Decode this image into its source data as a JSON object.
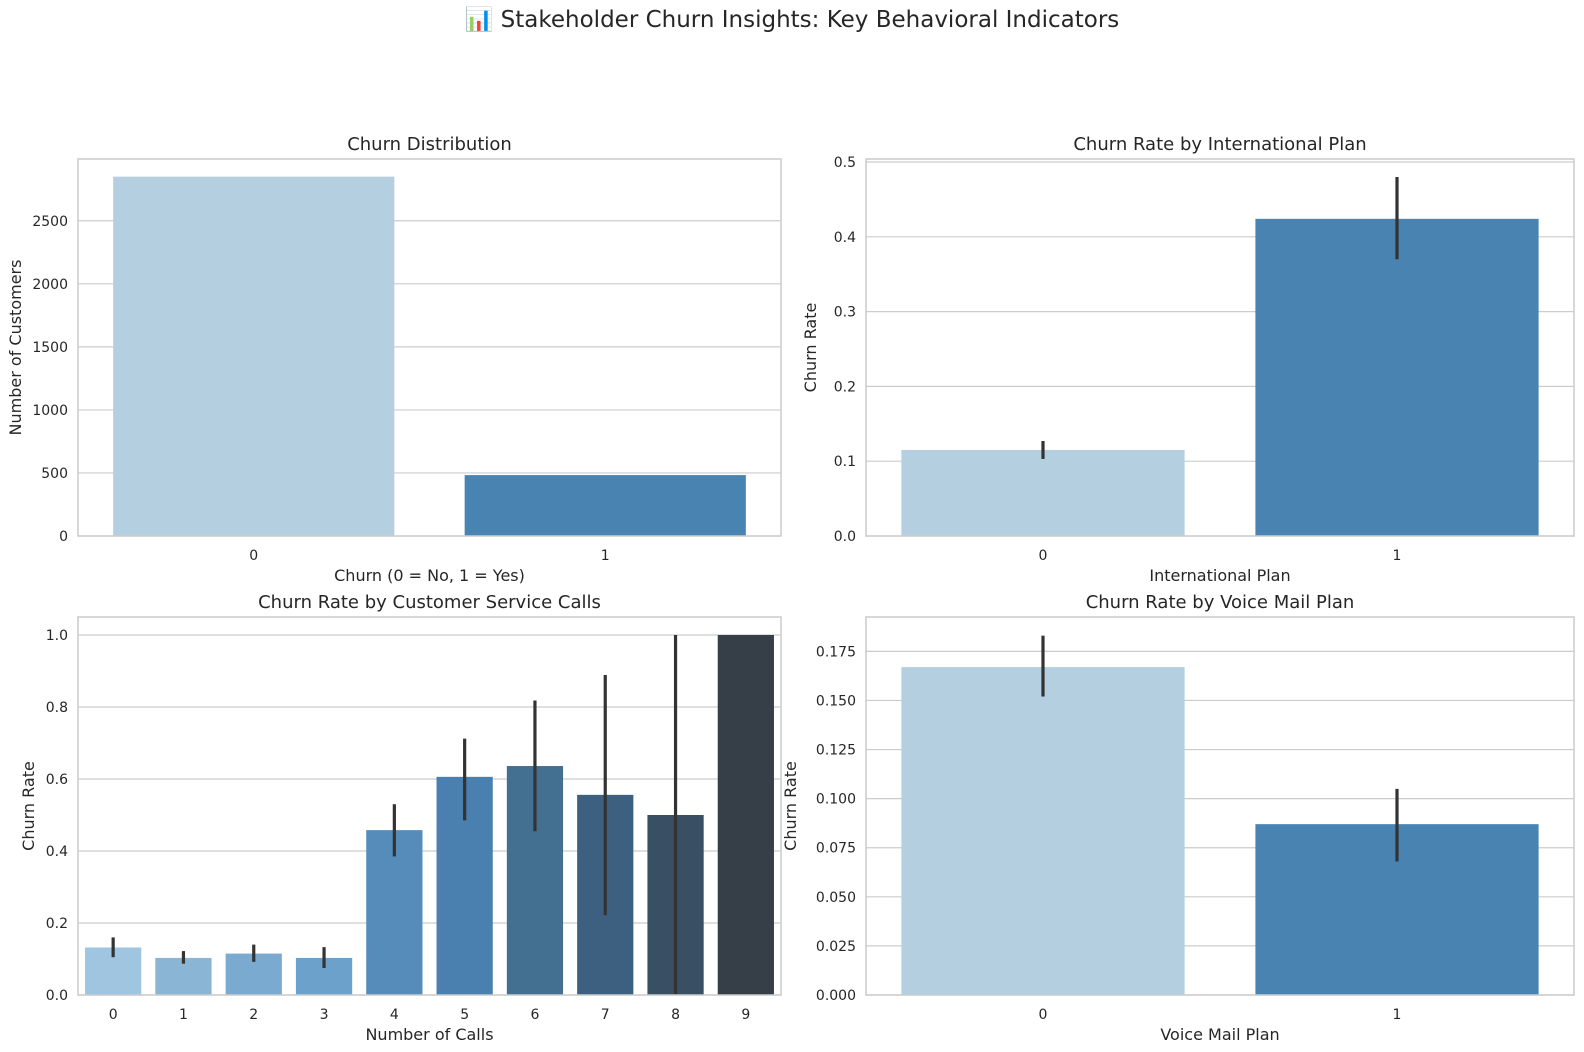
{
  "suptitle": "📊 Stakeholder Churn Insights: Key Behavioral Indicators",
  "colors": {
    "grid": "#cccccc",
    "spine": "#cccccc",
    "errorbar": "#333333",
    "text": "#262626"
  },
  "chart_data": [
    {
      "type": "bar",
      "title": "Churn Distribution",
      "xlabel": "Churn (0 = No, 1 = Yes)",
      "ylabel": "Number of Customers",
      "categories": [
        "0",
        "1"
      ],
      "values": [
        2850,
        483
      ],
      "colors": [
        "#b3cfe0",
        "#4883b1"
      ],
      "ylim": [
        0,
        2990
      ],
      "yticks": [
        0,
        500,
        1000,
        1500,
        2000,
        2500
      ],
      "ytick_labels": [
        "0",
        "500",
        "1000",
        "1500",
        "2000",
        "2500"
      ],
      "grid": true
    },
    {
      "type": "bar",
      "title": "Churn Rate by International Plan",
      "xlabel": "International Plan",
      "ylabel": "Churn Rate",
      "categories": [
        "0",
        "1"
      ],
      "values": [
        0.115,
        0.424
      ],
      "error_low": [
        0.103,
        0.37
      ],
      "error_high": [
        0.127,
        0.48
      ],
      "colors": [
        "#b3cfe0",
        "#4883b1"
      ],
      "ylim": [
        0,
        0.504
      ],
      "yticks": [
        0,
        0.1,
        0.2,
        0.3,
        0.4,
        0.5
      ],
      "ytick_labels": [
        "0.0",
        "0.1",
        "0.2",
        "0.3",
        "0.4",
        "0.5"
      ],
      "grid": true
    },
    {
      "type": "bar",
      "title": "Churn Rate by Customer Service Calls",
      "xlabel": "Number of Calls",
      "ylabel": "Churn Rate",
      "categories": [
        "0",
        "1",
        "2",
        "3",
        "4",
        "5",
        "6",
        "7",
        "8",
        "9"
      ],
      "values": [
        0.132,
        0.103,
        0.115,
        0.103,
        0.458,
        0.606,
        0.636,
        0.556,
        0.5,
        1.0
      ],
      "error_low": [
        0.105,
        0.087,
        0.092,
        0.075,
        0.385,
        0.485,
        0.455,
        0.222,
        0.0,
        1.0
      ],
      "error_high": [
        0.16,
        0.122,
        0.14,
        0.133,
        0.53,
        0.712,
        0.818,
        0.889,
        1.0,
        1.0
      ],
      "colors": [
        "#9fc5e0",
        "#8ab5d4",
        "#7aaad0",
        "#6ba1ca",
        "#558cb9",
        "#4a80b0",
        "#436f91",
        "#3e6080",
        "#394f63",
        "#363f47"
      ],
      "ylim": [
        0,
        1.05
      ],
      "yticks": [
        0,
        0.2,
        0.4,
        0.6,
        0.8,
        1.0
      ],
      "ytick_labels": [
        "0.0",
        "0.2",
        "0.4",
        "0.6",
        "0.8",
        "1.0"
      ],
      "grid": true
    },
    {
      "type": "bar",
      "title": "Churn Rate by Voice Mail Plan",
      "xlabel": "Voice Mail Plan",
      "ylabel": "Churn Rate",
      "categories": [
        "0",
        "1"
      ],
      "values": [
        0.167,
        0.087
      ],
      "error_low": [
        0.152,
        0.068
      ],
      "error_high": [
        0.183,
        0.105
      ],
      "colors": [
        "#b3cfe0",
        "#4883b1"
      ],
      "ylim": [
        0,
        0.1925
      ],
      "yticks": [
        0,
        0.025,
        0.05,
        0.075,
        0.1,
        0.125,
        0.15,
        0.175
      ],
      "ytick_labels": [
        "0.000",
        "0.025",
        "0.050",
        "0.075",
        "0.100",
        "0.125",
        "0.150",
        "0.175"
      ],
      "grid": true
    }
  ]
}
